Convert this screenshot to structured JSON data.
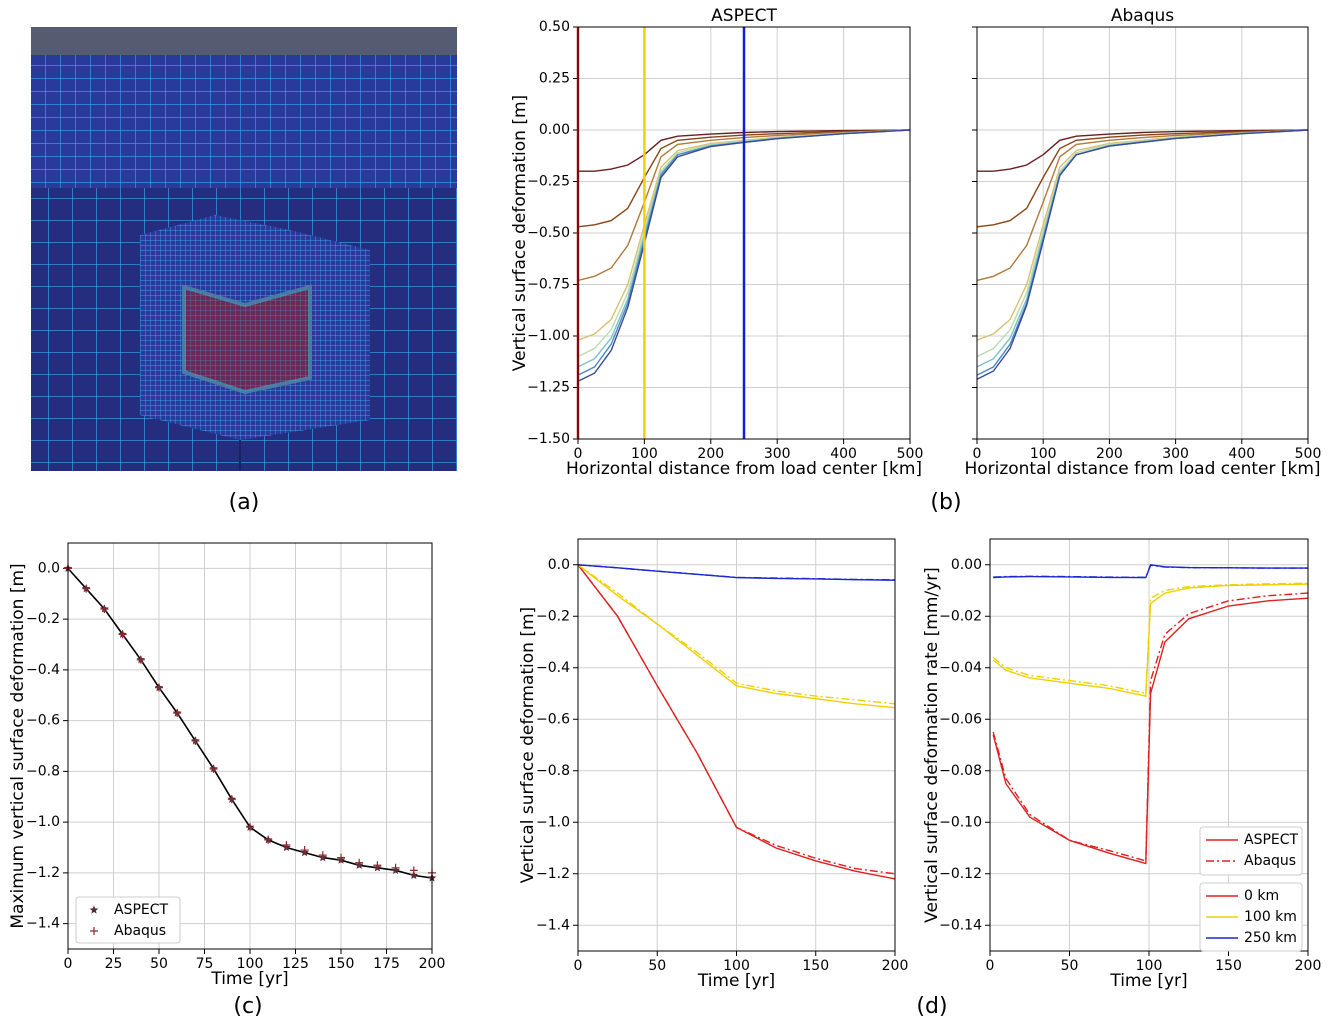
{
  "panel_labels": [
    "(a)",
    "(b)",
    "(c)",
    "(d)"
  ],
  "chart_data": [
    {
      "type": "line",
      "title": "ASPECT",
      "xlabel": "Horizontal distance from load center [km]",
      "ylabel": "Vertical surface deformation [m]",
      "xlim": [
        0,
        500
      ],
      "ylim": [
        -1.5,
        0.5
      ],
      "xticks": [
        0,
        100,
        200,
        300,
        400,
        500
      ],
      "yticks": [
        {
          "value": 0.5,
          "label": "0.50"
        },
        {
          "value": 0.25,
          "label": "0.25"
        },
        {
          "value": 0,
          "label": "0.00"
        },
        {
          "value": -0.25,
          "label": "−0.25"
        },
        {
          "value": -0.5,
          "label": "−0.50"
        },
        {
          "value": -0.75,
          "label": "−0.75"
        },
        {
          "value": -1,
          "label": "−1.00"
        },
        {
          "value": -1.25,
          "label": "−1.25"
        },
        {
          "value": -1.5,
          "label": "−1.50"
        }
      ],
      "grid": true,
      "x": [
        0,
        25,
        50,
        75,
        100,
        125,
        150,
        200,
        250,
        300,
        400,
        500
      ],
      "series": [
        {
          "color": "#6b1f1f",
          "values": [
            -0.2,
            -0.2,
            -0.19,
            -0.17,
            -0.12,
            -0.05,
            -0.03,
            -0.02,
            -0.012,
            -0.008,
            -0.003,
            0
          ]
        },
        {
          "color": "#8b4513",
          "values": [
            -0.47,
            -0.46,
            -0.44,
            -0.38,
            -0.23,
            -0.09,
            -0.05,
            -0.035,
            -0.025,
            -0.018,
            -0.008,
            0
          ]
        },
        {
          "color": "#b07a3a",
          "values": [
            -0.73,
            -0.71,
            -0.67,
            -0.56,
            -0.35,
            -0.13,
            -0.07,
            -0.05,
            -0.037,
            -0.026,
            -0.012,
            0
          ]
        },
        {
          "color": "#d8c070",
          "values": [
            -1.02,
            -0.99,
            -0.92,
            -0.75,
            -0.46,
            -0.18,
            -0.1,
            -0.065,
            -0.05,
            -0.035,
            -0.015,
            0
          ]
        },
        {
          "color": "#b8dcb0",
          "values": [
            -1.1,
            -1.06,
            -0.97,
            -0.79,
            -0.49,
            -0.2,
            -0.11,
            -0.07,
            -0.054,
            -0.038,
            -0.016,
            0
          ]
        },
        {
          "color": "#7cc0c8",
          "values": [
            -1.15,
            -1.11,
            -1.01,
            -0.82,
            -0.51,
            -0.21,
            -0.12,
            -0.075,
            -0.057,
            -0.04,
            -0.017,
            0
          ]
        },
        {
          "color": "#4a8cc0",
          "values": [
            -1.19,
            -1.15,
            -1.04,
            -0.84,
            -0.53,
            -0.22,
            -0.12,
            -0.078,
            -0.059,
            -0.041,
            -0.018,
            0
          ]
        },
        {
          "color": "#3a4a9a",
          "values": [
            -1.22,
            -1.18,
            -1.07,
            -0.86,
            -0.55,
            -0.23,
            -0.13,
            -0.08,
            -0.06,
            -0.042,
            -0.018,
            0
          ]
        }
      ],
      "vlines": [
        {
          "x": 0,
          "color": "#e02020"
        },
        {
          "x": 100,
          "color": "#f5d000"
        },
        {
          "x": 250,
          "color": "#1020d0"
        }
      ]
    },
    {
      "type": "line",
      "title": "Abaqus",
      "xlabel": "Horizontal distance from load center [km]",
      "xlim": [
        0,
        500
      ],
      "ylim": [
        -1.5,
        0.5
      ],
      "xticks": [
        0,
        100,
        200,
        300,
        400,
        500
      ],
      "yticks": [
        0.5,
        0.25,
        0,
        -0.25,
        -0.5,
        -0.75,
        -1,
        -1.25,
        -1.5
      ],
      "ytick_labels": false,
      "grid": true,
      "x": [
        0,
        25,
        50,
        75,
        100,
        125,
        150,
        200,
        250,
        300,
        400,
        500
      ],
      "series": [
        {
          "color": "#6b1f1f",
          "values": [
            -0.2,
            -0.2,
            -0.19,
            -0.17,
            -0.12,
            -0.05,
            -0.03,
            -0.02,
            -0.012,
            -0.008,
            -0.003,
            0
          ]
        },
        {
          "color": "#8b4513",
          "values": [
            -0.47,
            -0.46,
            -0.44,
            -0.38,
            -0.23,
            -0.09,
            -0.05,
            -0.035,
            -0.025,
            -0.018,
            -0.008,
            0
          ]
        },
        {
          "color": "#b07a3a",
          "values": [
            -0.73,
            -0.71,
            -0.67,
            -0.56,
            -0.35,
            -0.13,
            -0.07,
            -0.05,
            -0.037,
            -0.026,
            -0.012,
            0
          ]
        },
        {
          "color": "#d8c070",
          "values": [
            -1.02,
            -0.99,
            -0.92,
            -0.75,
            -0.46,
            -0.18,
            -0.1,
            -0.065,
            -0.05,
            -0.035,
            -0.015,
            0
          ]
        },
        {
          "color": "#b8dcb0",
          "values": [
            -1.1,
            -1.06,
            -0.97,
            -0.79,
            -0.49,
            -0.2,
            -0.11,
            -0.07,
            -0.054,
            -0.038,
            -0.016,
            0
          ]
        },
        {
          "color": "#7cc0c8",
          "values": [
            -1.15,
            -1.11,
            -1.01,
            -0.82,
            -0.51,
            -0.21,
            -0.12,
            -0.075,
            -0.057,
            -0.04,
            -0.017,
            0
          ]
        },
        {
          "color": "#4a8cc0",
          "values": [
            -1.19,
            -1.15,
            -1.04,
            -0.84,
            -0.53,
            -0.22,
            -0.12,
            -0.078,
            -0.059,
            -0.041,
            -0.018,
            0
          ]
        },
        {
          "color": "#3a4a9a",
          "values": [
            -1.21,
            -1.17,
            -1.06,
            -0.85,
            -0.54,
            -0.22,
            -0.12,
            -0.078,
            -0.059,
            -0.041,
            -0.018,
            0
          ]
        }
      ]
    },
    {
      "type": "scatter",
      "xlabel": "Time [yr]",
      "ylabel": "Maximum vertical surface deformation [m]",
      "xlim": [
        0,
        200
      ],
      "ylim": [
        -1.5,
        0.1
      ],
      "xticks": [
        0,
        25,
        50,
        75,
        100,
        125,
        150,
        175,
        200
      ],
      "yticks": [
        {
          "value": 0,
          "label": "0.0"
        },
        {
          "value": -0.2,
          "label": "−0.2"
        },
        {
          "value": -0.4,
          "label": "−0.4"
        },
        {
          "value": -0.6,
          "label": "−0.6"
        },
        {
          "value": -0.8,
          "label": "−0.8"
        },
        {
          "value": -1,
          "label": "−1.0"
        },
        {
          "value": -1.2,
          "label": "−1.2"
        },
        {
          "value": -1.4,
          "label": "−1.4"
        }
      ],
      "grid": true,
      "legend": "lower left",
      "x": [
        0,
        10,
        20,
        30,
        40,
        50,
        60,
        70,
        80,
        90,
        100,
        110,
        120,
        130,
        140,
        150,
        160,
        170,
        180,
        190,
        200
      ],
      "series": [
        {
          "name": "ASPECT",
          "marker": "star",
          "color": "#5a2a3a",
          "line": "#000000",
          "values": [
            0,
            -0.08,
            -0.16,
            -0.26,
            -0.36,
            -0.47,
            -0.57,
            -0.68,
            -0.79,
            -0.91,
            -1.02,
            -1.07,
            -1.1,
            -1.12,
            -1.14,
            -1.15,
            -1.17,
            -1.18,
            -1.19,
            -1.21,
            -1.22
          ]
        },
        {
          "name": "Abaqus",
          "marker": "plus",
          "color": "#8b2a2a",
          "values": [
            0,
            -0.08,
            -0.16,
            -0.26,
            -0.36,
            -0.47,
            -0.57,
            -0.68,
            -0.79,
            -0.91,
            -1.02,
            -1.07,
            -1.09,
            -1.11,
            -1.13,
            -1.14,
            -1.16,
            -1.17,
            -1.18,
            -1.19,
            -1.2
          ]
        }
      ]
    },
    {
      "type": "line",
      "xlabel": "Time [yr]",
      "ylabel": "Vertical surface deformation [m]",
      "xlim": [
        0,
        200
      ],
      "ylim": [
        -1.5,
        0.1
      ],
      "xticks": [
        0,
        50,
        100,
        150,
        200
      ],
      "yticks": [
        {
          "value": 0,
          "label": "0.0"
        },
        {
          "value": -0.2,
          "label": "−0.2"
        },
        {
          "value": -0.4,
          "label": "−0.4"
        },
        {
          "value": -0.6,
          "label": "−0.6"
        },
        {
          "value": -0.8,
          "label": "−0.8"
        },
        {
          "value": -1,
          "label": "−1.0"
        },
        {
          "value": -1.2,
          "label": "−1.2"
        },
        {
          "value": -1.4,
          "label": "−1.4"
        }
      ],
      "grid": true,
      "x": [
        0,
        25,
        50,
        75,
        100,
        125,
        150,
        175,
        200
      ],
      "series": [
        {
          "color": "#e02020",
          "dash": "solid",
          "values": [
            0,
            -0.2,
            -0.47,
            -0.73,
            -1.02,
            -1.1,
            -1.15,
            -1.19,
            -1.22
          ]
        },
        {
          "color": "#e02020",
          "dash": "dashdot",
          "values": [
            0,
            -0.2,
            -0.47,
            -0.73,
            -1.02,
            -1.09,
            -1.14,
            -1.18,
            -1.2
          ]
        },
        {
          "color": "#f0d000",
          "dash": "solid",
          "values": [
            0,
            -0.12,
            -0.23,
            -0.35,
            -0.47,
            -0.5,
            -0.52,
            -0.54,
            -0.555
          ]
        },
        {
          "color": "#f0d000",
          "dash": "dashdot",
          "values": [
            0,
            -0.11,
            -0.23,
            -0.34,
            -0.46,
            -0.49,
            -0.51,
            -0.525,
            -0.54
          ]
        },
        {
          "color": "#1a28d0",
          "dash": "solid",
          "values": [
            0,
            -0.012,
            -0.025,
            -0.037,
            -0.05,
            -0.053,
            -0.055,
            -0.058,
            -0.06
          ]
        },
        {
          "color": "#1a28d0",
          "dash": "dashdot",
          "values": [
            0,
            -0.012,
            -0.025,
            -0.037,
            -0.049,
            -0.052,
            -0.054,
            -0.057,
            -0.059
          ]
        }
      ]
    },
    {
      "type": "line",
      "xlabel": "Time [yr]",
      "ylabel": "Vertical surface deformation rate [mm/yr]",
      "xlim": [
        0,
        200
      ],
      "ylim": [
        -0.15,
        0.01
      ],
      "xticks": [
        0,
        50,
        100,
        150,
        200
      ],
      "yticks": [
        {
          "value": 0,
          "label": "0.00"
        },
        {
          "value": -0.02,
          "label": "−0.02"
        },
        {
          "value": -0.04,
          "label": "−0.04"
        },
        {
          "value": -0.06,
          "label": "−0.06"
        },
        {
          "value": -0.08,
          "label": "−0.08"
        },
        {
          "value": -0.1,
          "label": "−0.10"
        },
        {
          "value": -0.12,
          "label": "−0.12"
        },
        {
          "value": -0.14,
          "label": "−0.14"
        }
      ],
      "grid": true,
      "x": [
        2,
        10,
        25,
        50,
        75,
        98,
        101,
        110,
        125,
        150,
        175,
        200
      ],
      "series": [
        {
          "color": "#e02020",
          "dash": "solid",
          "values": [
            -0.066,
            -0.085,
            -0.098,
            -0.107,
            -0.112,
            -0.116,
            -0.05,
            -0.03,
            -0.021,
            -0.016,
            -0.014,
            -0.013
          ]
        },
        {
          "color": "#e02020",
          "dash": "dashdot",
          "values": [
            -0.065,
            -0.083,
            -0.097,
            -0.107,
            -0.111,
            -0.115,
            -0.045,
            -0.027,
            -0.019,
            -0.014,
            -0.012,
            -0.011
          ]
        },
        {
          "color": "#f0d000",
          "dash": "solid",
          "values": [
            -0.037,
            -0.041,
            -0.044,
            -0.046,
            -0.048,
            -0.051,
            -0.015,
            -0.011,
            -0.009,
            -0.008,
            -0.0078,
            -0.0075
          ]
        },
        {
          "color": "#f0d000",
          "dash": "dashdot",
          "values": [
            -0.036,
            -0.04,
            -0.043,
            -0.045,
            -0.047,
            -0.05,
            -0.013,
            -0.01,
            -0.0085,
            -0.0078,
            -0.0074,
            -0.0072
          ]
        },
        {
          "color": "#1a28d0",
          "dash": "solid",
          "values": [
            -0.005,
            -0.0047,
            -0.0046,
            -0.0047,
            -0.0049,
            -0.005,
            0,
            -0.0008,
            -0.0011,
            -0.0012,
            -0.0013,
            -0.0013
          ]
        },
        {
          "color": "#1a28d0",
          "dash": "dashdot",
          "values": [
            -0.0048,
            -0.0046,
            -0.0045,
            -0.0046,
            -0.0048,
            -0.0049,
            -0.0002,
            -0.0009,
            -0.0011,
            -0.0012,
            -0.0013,
            -0.0013
          ]
        }
      ],
      "legend": {
        "location": "lower right",
        "styles": [
          {
            "name": "ASPECT",
            "dash": "solid",
            "color": "#e02020"
          },
          {
            "name": "Abaqus",
            "dash": "dashdot",
            "color": "#e02020"
          }
        ],
        "colors": [
          {
            "name": "0 km",
            "color": "#e02020"
          },
          {
            "name": "100 km",
            "color": "#f0d000"
          },
          {
            "name": "250 km",
            "color": "#1a28d0"
          }
        ]
      }
    }
  ]
}
